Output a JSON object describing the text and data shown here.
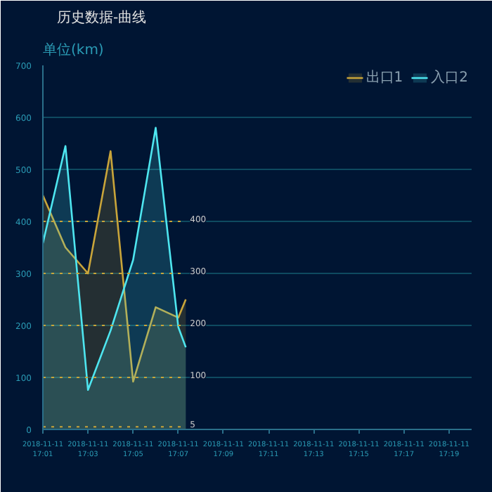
{
  "chart_data": {
    "type": "area",
    "title": "历史数据-曲线",
    "ylabel": "单位(km)",
    "x": [
      "2018-11-11T17:01",
      "2018-11-11T17:02",
      "2018-11-11T17:03",
      "2018-11-11T17:04",
      "2018-11-11T17:05",
      "2018-11-11T17:06",
      "2018-11-11T17:07",
      "2018-11-11T17:07:20"
    ],
    "series": [
      {
        "name": "出口1",
        "color": "#c9a53a",
        "values": [
          450,
          350,
          300,
          535,
          92,
          235,
          215,
          250
        ]
      },
      {
        "name": "入口2",
        "color": "#4ee6f0",
        "values": [
          358,
          545,
          76,
          190,
          326,
          580,
          197,
          158
        ]
      }
    ],
    "xlim": [
      "2018-11-11T17:01",
      "2018-11-11T17:20"
    ],
    "xticks": [
      {
        "value": "2018-11-11T17:01",
        "label": "2018-11-11\n17:01"
      },
      {
        "value": "2018-11-11T17:03",
        "label": "2018-11-11\n17:03"
      },
      {
        "value": "2018-11-11T17:05",
        "label": "2018-11-11\n17:05"
      },
      {
        "value": "2018-11-11T17:07",
        "label": "2018-11-11\n17:07"
      },
      {
        "value": "2018-11-11T17:09",
        "label": "2018-11-11\n17:09"
      },
      {
        "value": "2018-11-11T17:11",
        "label": "2018-11-11\n17:11"
      },
      {
        "value": "2018-11-11T17:13",
        "label": "2018-11-11\n17:13"
      },
      {
        "value": "2018-11-11T17:15",
        "label": "2018-11-11\n17:15"
      },
      {
        "value": "2018-11-11T17:17",
        "label": "2018-11-11\n17:17"
      },
      {
        "value": "2018-11-11T17:19",
        "label": "2018-11-11\n17:19"
      }
    ],
    "ylim": [
      0,
      700
    ],
    "yticks": [
      0,
      100,
      200,
      300,
      400,
      500,
      600,
      700
    ],
    "ref_lines": [
      {
        "axis": "y",
        "value": 400,
        "label": "400",
        "color": "#c9a53a",
        "line_style": "dotted"
      },
      {
        "axis": "y",
        "value": 300,
        "label": "300",
        "color": "#c9a53a",
        "line_style": "dotted"
      },
      {
        "axis": "y",
        "value": 200,
        "label": "200",
        "color": "#c9a53a",
        "line_style": "dotted"
      },
      {
        "axis": "y",
        "value": 100,
        "label": "100",
        "color": "#c9a53a",
        "line_style": "dotted"
      },
      {
        "axis": "y",
        "value": 5,
        "label": "5",
        "color": "#c9a53a",
        "line_style": "dotted"
      }
    ],
    "grid": "y",
    "legend": "top right"
  }
}
